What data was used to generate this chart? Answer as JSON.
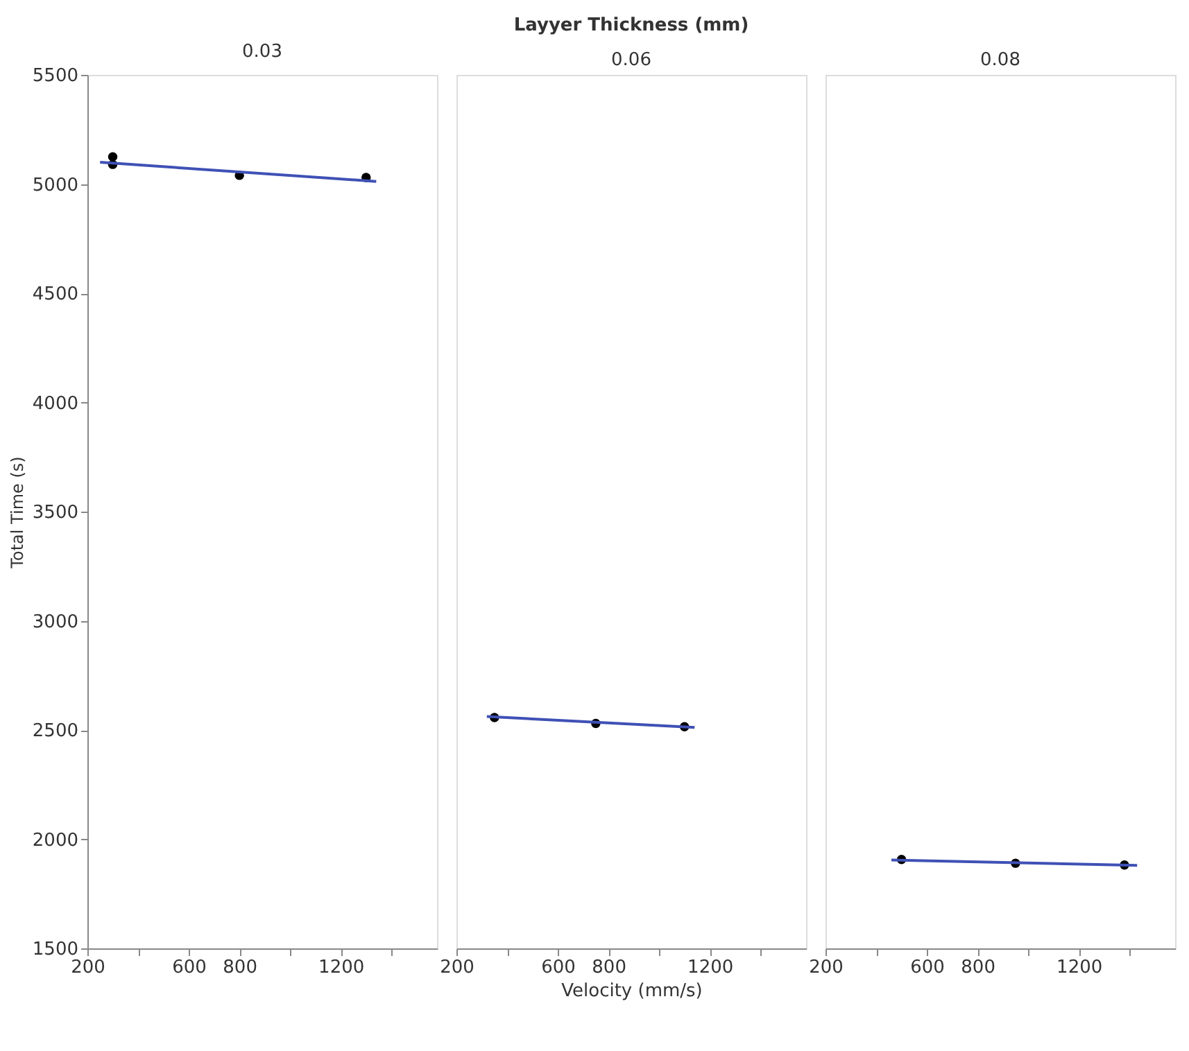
{
  "chart_data": [
    {
      "type": "scatter",
      "title": "0.03",
      "ylabel": "Total Time (s)",
      "xlim": [
        200,
        1580
      ],
      "ylim": [
        1500,
        5500
      ],
      "xticks": [
        200,
        {
          "value": 400,
          "label": null
        },
        600,
        800,
        {
          "value": 1000,
          "label": null
        },
        1200,
        {
          "value": 1400,
          "label": null
        }
      ],
      "yticks": [
        1500,
        2000,
        2500,
        3000,
        3500,
        4000,
        4500,
        5000,
        5500
      ],
      "grid": false,
      "series": [
        {
          "color": "#000000",
          "marker": "circle",
          "x": [
            300,
            300,
            800,
            1300
          ],
          "values": [
            5125,
            5090,
            5040,
            5030
          ]
        },
        {
          "type": "line",
          "color": "#3f51b5",
          "x": [
            250,
            1340
          ],
          "values": [
            5100,
            5012
          ]
        }
      ]
    },
    {
      "type": "scatter",
      "title": "0.06",
      "subtitle": "Layyer Thickness (mm)",
      "xlabel": "Velocity (mm/s)",
      "xlim": [
        200,
        1580
      ],
      "ylim": [
        1500,
        5500
      ],
      "xticks": [
        200,
        {
          "value": 400,
          "label": null
        },
        600,
        800,
        {
          "value": 1000,
          "label": null
        },
        1200,
        {
          "value": 1400,
          "label": null
        }
      ],
      "tick_labels": "x",
      "grid": false,
      "series": [
        {
          "color": "#000000",
          "marker": "circle",
          "x": [
            350,
            750,
            1100
          ],
          "values": [
            2557,
            2530,
            2515
          ]
        },
        {
          "type": "line",
          "color": "#3f51b5",
          "x": [
            320,
            1140
          ],
          "values": [
            2562,
            2512
          ]
        }
      ]
    },
    {
      "type": "scatter",
      "title": "0.08",
      "xlim": [
        200,
        1580
      ],
      "ylim": [
        1500,
        5500
      ],
      "xticks": [
        200,
        {
          "value": 400,
          "label": null
        },
        600,
        800,
        {
          "value": 1000,
          "label": null
        },
        1200,
        {
          "value": 1400,
          "label": null
        }
      ],
      "tick_labels": "x",
      "grid": false,
      "series": [
        {
          "color": "#000000",
          "marker": "circle",
          "x": [
            500,
            950,
            1380
          ],
          "values": [
            1907,
            1890,
            1882
          ]
        },
        {
          "type": "line",
          "color": "#3f51b5",
          "x": [
            460,
            1430
          ],
          "values": [
            1905,
            1880
          ]
        }
      ]
    }
  ]
}
